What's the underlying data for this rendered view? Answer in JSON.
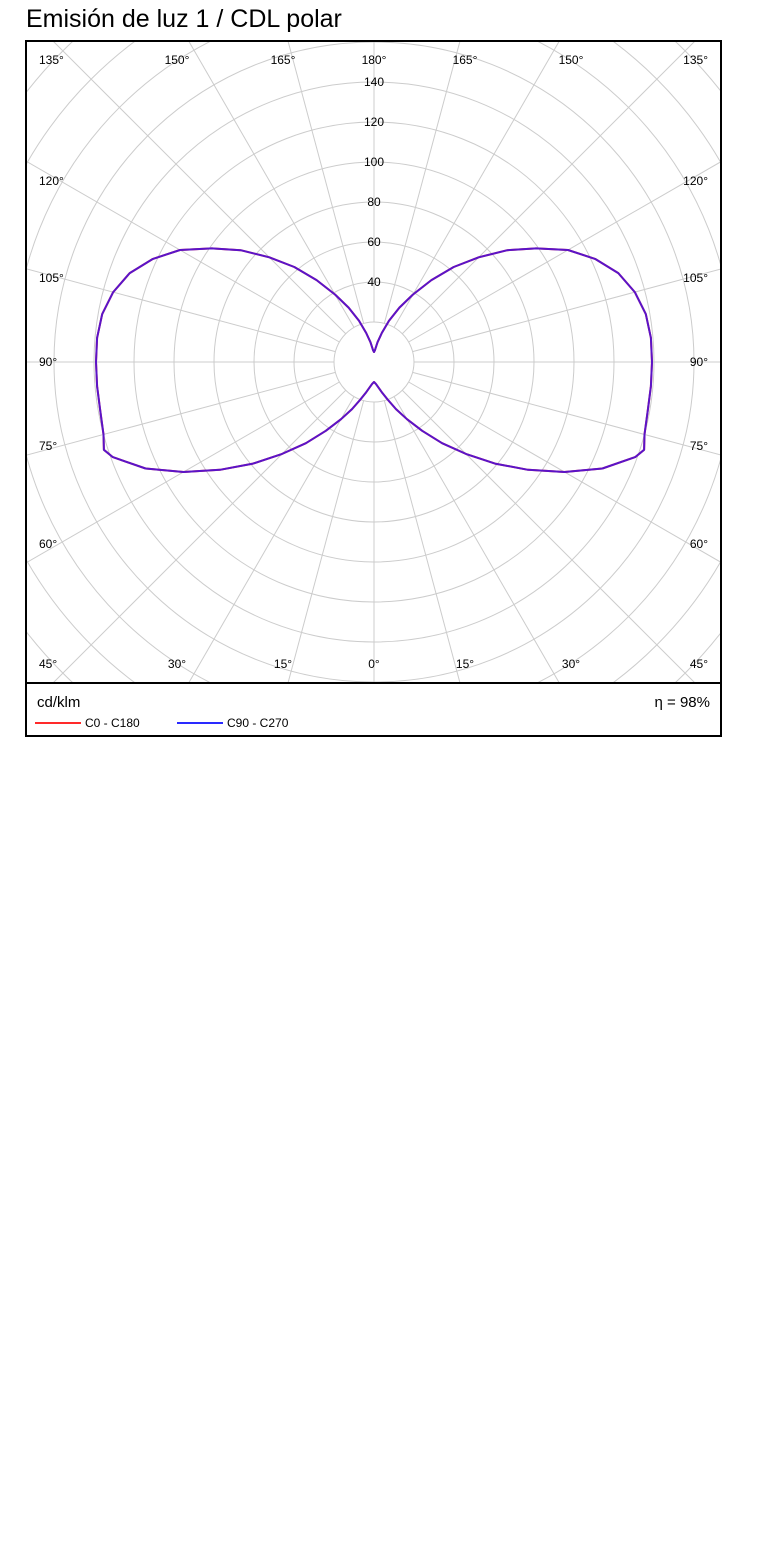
{
  "title": "Emisión de luz 1 / CDL polar",
  "chart_data": {
    "type": "polar-line",
    "unit_label": "cd/klm",
    "efficiency_label": "η = 98%",
    "radial_ticks": [
      40,
      60,
      80,
      100,
      120,
      140
    ],
    "angle_labels_left": [
      "135°",
      "150°",
      "165°",
      "120°",
      "105°",
      "90°",
      "75°",
      "60°",
      "45°",
      "30°",
      "15°"
    ],
    "angle_label_top_center": "180°",
    "angle_labels_right": [
      "165°",
      "150°",
      "135°",
      "120°",
      "105°",
      "90°",
      "75°",
      "60°",
      "45°",
      "30°",
      "15°"
    ],
    "angle_label_bottom_center": "0°",
    "gamma_deg": [
      0,
      5,
      10,
      15,
      20,
      25,
      30,
      35,
      40,
      45,
      50,
      55,
      60,
      65,
      70,
      72,
      75,
      80,
      85,
      90,
      95,
      100,
      105,
      110,
      115,
      120,
      125,
      130,
      135,
      140,
      145,
      150,
      155,
      160,
      165,
      170,
      175,
      180
    ],
    "series": [
      {
        "name": "C0 - C180",
        "color": "#ff2a2a",
        "values": [
          10,
          11,
          13,
          16,
          20,
          26,
          33,
          42,
          53,
          65,
          79,
          94,
          110,
          126,
          139,
          142,
          140,
          139,
          139,
          139,
          139,
          138,
          135,
          130,
          122,
          112,
          99,
          87,
          74,
          62,
          50,
          39,
          30,
          22,
          15,
          10,
          6,
          5
        ]
      },
      {
        "name": "C90 - C270",
        "color": "#2a2aff",
        "values": [
          10,
          11,
          13,
          16,
          20,
          26,
          33,
          42,
          53,
          65,
          79,
          94,
          110,
          126,
          139,
          142,
          140,
          139,
          139,
          139,
          139,
          138,
          135,
          130,
          122,
          112,
          99,
          87,
          74,
          62,
          50,
          39,
          30,
          22,
          15,
          10,
          6,
          5
        ]
      }
    ]
  }
}
